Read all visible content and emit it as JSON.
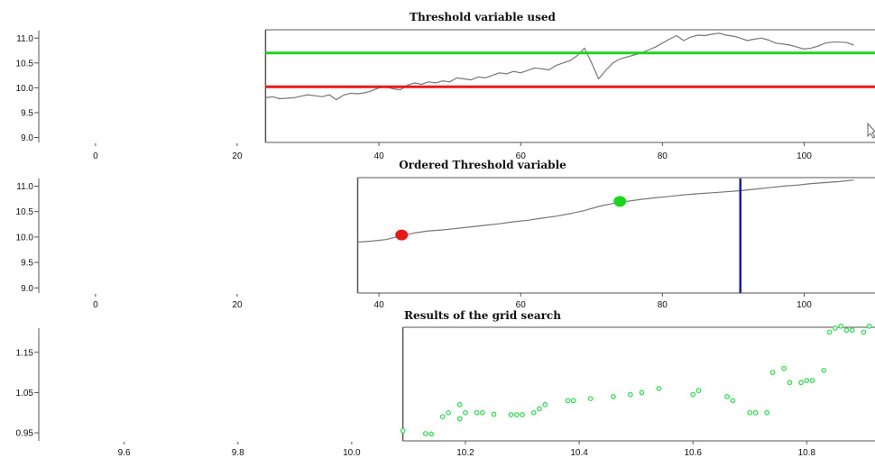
{
  "chart_data": [
    {
      "type": "line",
      "title": "Threshold variable used",
      "xlabel": "",
      "ylabel": "",
      "xlim": [
        -8,
        110
      ],
      "ylim": [
        8.9,
        11.15
      ],
      "xticks": [
        0,
        20,
        40,
        60,
        80,
        100
      ],
      "xtick_labels": [
        "0",
        "20",
        "40",
        "60",
        "80",
        "100"
      ],
      "yticks": [
        9.0,
        9.5,
        10.0,
        10.5,
        11.0
      ],
      "ytick_labels": [
        "9.0",
        "9.5",
        "10.0",
        "10.5",
        "11.0"
      ],
      "plot_frame_x": [
        24,
        110
      ],
      "grid": false,
      "series": [
        {
          "color": "#777777",
          "x": [
            24,
            25,
            26,
            27,
            28,
            29,
            30,
            31,
            32,
            33,
            34,
            35,
            36,
            37,
            38,
            39,
            40,
            41,
            42,
            43,
            44,
            45,
            46,
            47,
            48,
            49,
            50,
            51,
            52,
            53,
            54,
            55,
            56,
            57,
            58,
            59,
            60,
            61,
            62,
            63,
            64,
            65,
            66,
            67,
            68,
            69,
            70,
            71,
            72,
            73,
            74,
            75,
            76,
            77,
            78,
            79,
            80,
            81,
            82,
            83,
            84,
            85,
            86,
            87,
            88,
            89,
            90,
            91,
            92,
            93,
            94,
            95,
            96,
            97,
            98,
            99,
            100,
            101,
            102,
            103,
            104,
            105,
            106,
            107
          ],
          "y": [
            9.8,
            9.82,
            9.78,
            9.79,
            9.8,
            9.83,
            9.86,
            9.84,
            9.82,
            9.86,
            9.76,
            9.85,
            9.89,
            9.88,
            9.9,
            9.94,
            10.0,
            10.02,
            9.98,
            9.96,
            10.05,
            10.1,
            10.07,
            10.12,
            10.1,
            10.14,
            10.12,
            10.2,
            10.18,
            10.16,
            10.22,
            10.2,
            10.25,
            10.3,
            10.28,
            10.33,
            10.3,
            10.35,
            10.4,
            10.38,
            10.36,
            10.45,
            10.5,
            10.55,
            10.65,
            10.8,
            10.5,
            10.18,
            10.35,
            10.5,
            10.58,
            10.62,
            10.66,
            10.7,
            10.76,
            10.82,
            10.9,
            10.98,
            11.05,
            10.95,
            11.02,
            11.06,
            11.05,
            11.08,
            11.1,
            11.06,
            11.04,
            11.0,
            10.95,
            10.98,
            11.0,
            10.96,
            10.9,
            10.88,
            10.86,
            10.82,
            10.78,
            10.8,
            10.84,
            10.9,
            10.92,
            10.92,
            10.91,
            10.86
          ]
        },
        {
          "color": "#1fd41f",
          "x": [
            24,
            110
          ],
          "y": [
            10.7,
            10.7
          ]
        },
        {
          "color": "#e41a1a",
          "x": [
            24,
            110
          ],
          "y": [
            10.02,
            10.02
          ]
        }
      ]
    },
    {
      "type": "line",
      "title": "Ordered Threshold variable",
      "xlabel": "",
      "ylabel": "",
      "xlim": [
        -8,
        110
      ],
      "ylim": [
        8.9,
        11.15
      ],
      "xticks": [
        0,
        20,
        40,
        60,
        80,
        100
      ],
      "xtick_labels": [
        "0",
        "20",
        "40",
        "60",
        "80",
        "100"
      ],
      "yticks": [
        9.0,
        9.5,
        10.0,
        10.5,
        11.0
      ],
      "ytick_labels": [
        "9.0",
        "9.5",
        "10.0",
        "10.5",
        "11.0"
      ],
      "plot_frame_x": [
        37,
        110
      ],
      "grid": false,
      "series": [
        {
          "color": "#777777",
          "x": [
            37,
            39,
            41,
            43,
            45,
            47,
            49,
            51,
            53,
            55,
            57,
            59,
            61,
            63,
            65,
            67,
            69,
            71,
            73,
            75,
            77,
            79,
            81,
            83,
            85,
            87,
            89,
            91,
            93,
            95,
            97,
            99,
            101,
            103,
            105,
            107
          ],
          "y": [
            9.9,
            9.92,
            9.95,
            10.02,
            10.08,
            10.12,
            10.14,
            10.17,
            10.2,
            10.23,
            10.26,
            10.3,
            10.33,
            10.37,
            10.41,
            10.46,
            10.52,
            10.6,
            10.66,
            10.7,
            10.74,
            10.77,
            10.8,
            10.83,
            10.85,
            10.87,
            10.89,
            10.91,
            10.94,
            10.97,
            11.0,
            11.02,
            11.05,
            11.07,
            11.09,
            11.12
          ]
        }
      ],
      "markers": [
        {
          "x": 43.2,
          "y": 10.04,
          "color": "#e41a1a"
        },
        {
          "x": 74,
          "y": 10.7,
          "color": "#1fd41f"
        }
      ],
      "vline": {
        "x": 91,
        "color": "#1a1aa8"
      }
    },
    {
      "type": "scatter",
      "title": "Results of the grid search",
      "xlabel": "",
      "ylabel": "",
      "xlim": [
        9.45,
        10.92
      ],
      "ylim": [
        0.93,
        1.21
      ],
      "xticks": [
        9.6,
        9.8,
        10.0,
        10.2,
        10.4,
        10.6,
        10.8
      ],
      "xtick_labels": [
        "9.6",
        "9.8",
        "10.0",
        "10.2",
        "10.4",
        "10.6",
        "10.8"
      ],
      "yticks": [
        0.95,
        1.05,
        1.15
      ],
      "ytick_labels": [
        "0.95",
        "1.05",
        "1.15"
      ],
      "plot_frame_x": [
        10.09,
        10.92
      ],
      "grid": false,
      "point_color": "#3ad85a",
      "series": [
        {
          "x": [
            10.09,
            10.13,
            10.14,
            10.16,
            10.17,
            10.19,
            10.19,
            10.2,
            10.22,
            10.23,
            10.25,
            10.28,
            10.29,
            10.3,
            10.32,
            10.33,
            10.34,
            10.38,
            10.39,
            10.42,
            10.46,
            10.49,
            10.51,
            10.54,
            10.6,
            10.61,
            10.66,
            10.67,
            10.7,
            10.71,
            10.73,
            10.74,
            10.76,
            10.77,
            10.79,
            10.8,
            10.81,
            10.83,
            10.84,
            10.85,
            10.86,
            10.87,
            10.88,
            10.9,
            10.91
          ],
          "y": [
            0.955,
            0.948,
            0.947,
            0.99,
            1.0,
            1.02,
            0.985,
            1.0,
            1.0,
            1.0,
            0.996,
            0.995,
            0.995,
            0.995,
            1.0,
            1.01,
            1.02,
            1.03,
            1.03,
            1.035,
            1.04,
            1.045,
            1.05,
            1.06,
            1.045,
            1.055,
            1.04,
            1.03,
            1.0,
            1.0,
            1.0,
            1.1,
            1.11,
            1.075,
            1.075,
            1.08,
            1.08,
            1.105,
            1.2,
            1.21,
            1.215,
            1.205,
            1.205,
            1.2,
            1.215
          ]
        }
      ]
    }
  ]
}
